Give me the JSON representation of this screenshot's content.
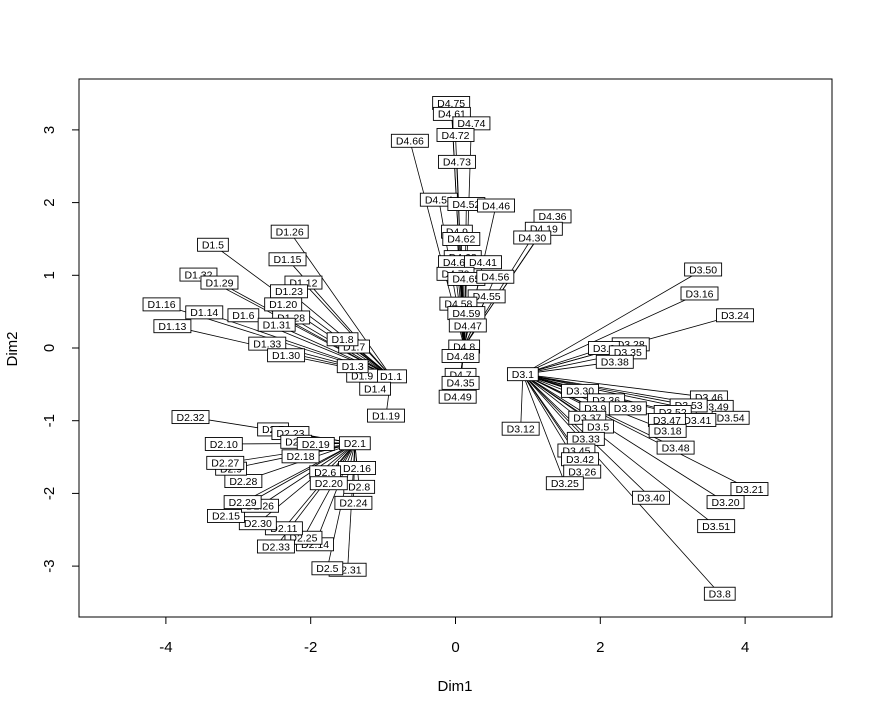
{
  "chart_data": {
    "type": "scatter",
    "title": "",
    "xlabel": "Dim1",
    "ylabel": "Dim2",
    "xlim": [
      -5.2,
      5.2
    ],
    "ylim": [
      -3.7,
      3.7
    ],
    "xticks": [
      -4,
      -2,
      0,
      2,
      4
    ],
    "yticks": [
      -3,
      -2,
      -1,
      0,
      1,
      2,
      3
    ],
    "xtick_labels": [
      "-4",
      "-2",
      "0",
      "2",
      "4"
    ],
    "ytick_labels": [
      "-3",
      "-2",
      "-1",
      "0",
      "1",
      "2",
      "3"
    ],
    "grid": false,
    "style": "labeled points connected by line segments to their group centroid",
    "groups": [
      {
        "name": "D1",
        "centroid": "D1.1",
        "points": [
          {
            "label": "D1.1",
            "x": -0.89,
            "y": -0.39
          },
          {
            "label": "D1.4",
            "x": -1.11,
            "y": -0.56
          },
          {
            "label": "D1.9",
            "x": -1.29,
            "y": -0.38
          },
          {
            "label": "D1.7",
            "x": -1.4,
            "y": 0.02
          },
          {
            "label": "D1.8",
            "x": -1.56,
            "y": 0.12
          },
          {
            "label": "D1.3",
            "x": -1.42,
            "y": -0.25
          },
          {
            "label": "D1.19",
            "x": -0.96,
            "y": -0.93
          },
          {
            "label": "D1.26",
            "x": -2.29,
            "y": 1.6
          },
          {
            "label": "D1.5",
            "x": -3.35,
            "y": 1.42
          },
          {
            "label": "D1.15",
            "x": -2.32,
            "y": 1.22
          },
          {
            "label": "D1.12",
            "x": -2.1,
            "y": 0.9
          },
          {
            "label": "D1.23",
            "x": -2.3,
            "y": 0.78
          },
          {
            "label": "D1.32",
            "x": -3.55,
            "y": 1.01
          },
          {
            "label": "D1.29",
            "x": -3.26,
            "y": 0.9
          },
          {
            "label": "D1.16",
            "x": -4.06,
            "y": 0.6
          },
          {
            "label": "D1.20",
            "x": -2.38,
            "y": 0.6
          },
          {
            "label": "D1.14",
            "x": -3.47,
            "y": 0.49
          },
          {
            "label": "D1.6",
            "x": -2.93,
            "y": 0.45
          },
          {
            "label": "D1.28",
            "x": -2.27,
            "y": 0.42
          },
          {
            "label": "D1.31",
            "x": -2.47,
            "y": 0.32
          },
          {
            "label": "D1.13",
            "x": -3.91,
            "y": 0.3
          },
          {
            "label": "D1.33",
            "x": -2.6,
            "y": 0.06
          },
          {
            "label": "D1.30",
            "x": -2.34,
            "y": -0.1
          }
        ]
      },
      {
        "name": "D2",
        "centroid": "D2.1",
        "points": [
          {
            "label": "D2.1",
            "x": -1.39,
            "y": -1.31
          },
          {
            "label": "D2.16",
            "x": -1.36,
            "y": -1.65
          },
          {
            "label": "D2.8",
            "x": -1.33,
            "y": -1.91
          },
          {
            "label": "D2.24",
            "x": -1.41,
            "y": -2.13
          },
          {
            "label": "D2.6",
            "x": -1.8,
            "y": -1.71
          },
          {
            "label": "D2.20",
            "x": -1.75,
            "y": -1.86
          },
          {
            "label": "D2.31",
            "x": -1.49,
            "y": -3.05
          },
          {
            "label": "D2.5",
            "x": -1.77,
            "y": -3.03
          },
          {
            "label": "D2.14",
            "x": -1.94,
            "y": -2.7
          },
          {
            "label": "D2.25",
            "x": -2.1,
            "y": -2.61
          },
          {
            "label": "D2.11",
            "x": -2.37,
            "y": -2.48
          },
          {
            "label": "D2.33",
            "x": -2.48,
            "y": -2.73
          },
          {
            "label": "D2.30",
            "x": -2.73,
            "y": -2.41
          },
          {
            "label": "D2.15",
            "x": -3.17,
            "y": -2.31
          },
          {
            "label": "D2.26",
            "x": -2.7,
            "y": -2.17
          },
          {
            "label": "D2.29",
            "x": -2.94,
            "y": -2.12
          },
          {
            "label": "D2.28",
            "x": -2.93,
            "y": -1.83
          },
          {
            "label": "D2.9",
            "x": -3.1,
            "y": -1.66
          },
          {
            "label": "D2.27",
            "x": -3.18,
            "y": -1.58
          },
          {
            "label": "D2.10",
            "x": -3.2,
            "y": -1.32
          },
          {
            "label": "D2.32",
            "x": -3.66,
            "y": -0.95
          },
          {
            "label": "D2.7",
            "x": -2.52,
            "y": -1.12
          },
          {
            "label": "D2.23",
            "x": -2.28,
            "y": -1.17
          },
          {
            "label": "D2.3",
            "x": -2.2,
            "y": -1.29
          },
          {
            "label": "D2.19",
            "x": -1.93,
            "y": -1.32
          },
          {
            "label": "D2.18",
            "x": -2.14,
            "y": -1.49
          }
        ]
      },
      {
        "name": "D3",
        "centroid": "D3.1",
        "points": [
          {
            "label": "D3.1",
            "x": 0.93,
            "y": -0.36
          },
          {
            "label": "D3.12",
            "x": 0.9,
            "y": -1.11
          },
          {
            "label": "D3.50",
            "x": 3.42,
            "y": 1.08
          },
          {
            "label": "D3.16",
            "x": 3.37,
            "y": 0.75
          },
          {
            "label": "D3.24",
            "x": 3.86,
            "y": 0.45
          },
          {
            "label": "D3.28",
            "x": 2.42,
            "y": 0.05
          },
          {
            "label": "D3.6",
            "x": 2.05,
            "y": 0.0
          },
          {
            "label": "D3.35",
            "x": 2.38,
            "y": -0.06
          },
          {
            "label": "D3.38",
            "x": 2.2,
            "y": -0.19
          },
          {
            "label": "D3.30",
            "x": 1.72,
            "y": -0.59
          },
          {
            "label": "D3.36",
            "x": 2.08,
            "y": -0.72
          },
          {
            "label": "D3.9",
            "x": 1.93,
            "y": -0.83
          },
          {
            "label": "D3.39",
            "x": 2.38,
            "y": -0.83
          },
          {
            "label": "D3.37",
            "x": 1.82,
            "y": -0.96
          },
          {
            "label": "D3.5",
            "x": 1.97,
            "y": -1.08
          },
          {
            "label": "D3.33",
            "x": 1.8,
            "y": -1.25
          },
          {
            "label": "D3.45",
            "x": 1.67,
            "y": -1.41
          },
          {
            "label": "D3.42",
            "x": 1.72,
            "y": -1.53
          },
          {
            "label": "D3.26",
            "x": 1.75,
            "y": -1.7
          },
          {
            "label": "D3.25",
            "x": 1.51,
            "y": -1.86
          },
          {
            "label": "D3.46",
            "x": 3.5,
            "y": -0.68
          },
          {
            "label": "D3.49",
            "x": 3.58,
            "y": -0.81
          },
          {
            "label": "D3.53",
            "x": 3.22,
            "y": -0.79
          },
          {
            "label": "D3.52",
            "x": 3.0,
            "y": -0.88
          },
          {
            "label": "D3.54",
            "x": 3.8,
            "y": -0.96
          },
          {
            "label": "D3.41",
            "x": 3.34,
            "y": -0.99
          },
          {
            "label": "D3.47",
            "x": 2.92,
            "y": -0.99
          },
          {
            "label": "D3.18",
            "x": 2.93,
            "y": -1.14
          },
          {
            "label": "D3.48",
            "x": 3.04,
            "y": -1.37
          },
          {
            "label": "D3.40",
            "x": 2.7,
            "y": -2.06
          },
          {
            "label": "D3.21",
            "x": 4.06,
            "y": -1.94
          },
          {
            "label": "D3.20",
            "x": 3.73,
            "y": -2.12
          },
          {
            "label": "D3.51",
            "x": 3.6,
            "y": -2.45
          },
          {
            "label": "D3.8",
            "x": 3.65,
            "y": -3.38
          }
        ]
      },
      {
        "name": "D4",
        "centroid": "D4.8",
        "points": [
          {
            "label": "D4.8",
            "x": 0.12,
            "y": 0.02
          },
          {
            "label": "D4.75",
            "x": -0.06,
            "y": 3.37
          },
          {
            "label": "D4.61",
            "x": -0.05,
            "y": 3.22
          },
          {
            "label": "D4.74",
            "x": 0.22,
            "y": 3.09
          },
          {
            "label": "D4.72",
            "x": 0.0,
            "y": 2.93
          },
          {
            "label": "D4.66",
            "x": -0.63,
            "y": 2.85
          },
          {
            "label": "D4.73",
            "x": 0.02,
            "y": 2.56
          },
          {
            "label": "D4.54",
            "x": -0.23,
            "y": 2.04
          },
          {
            "label": "D4.52",
            "x": 0.15,
            "y": 1.98
          },
          {
            "label": "D4.46",
            "x": 0.56,
            "y": 1.96
          },
          {
            "label": "D4.36",
            "x": 1.34,
            "y": 1.81
          },
          {
            "label": "D4.19",
            "x": 1.22,
            "y": 1.64
          },
          {
            "label": "D4.9",
            "x": 0.02,
            "y": 1.6
          },
          {
            "label": "D4.30",
            "x": 1.06,
            "y": 1.52
          },
          {
            "label": "D4.62",
            "x": 0.08,
            "y": 1.5
          },
          {
            "label": "D4.68",
            "x": 0.1,
            "y": 1.25
          },
          {
            "label": "D4.69",
            "x": 0.02,
            "y": 1.18
          },
          {
            "label": "D4.41",
            "x": 0.38,
            "y": 1.18
          },
          {
            "label": "D4.70",
            "x": 0.0,
            "y": 1.02
          },
          {
            "label": "D4.65",
            "x": 0.15,
            "y": 0.95
          },
          {
            "label": "D4.56",
            "x": 0.55,
            "y": 0.98
          },
          {
            "label": "D4.55",
            "x": 0.43,
            "y": 0.71
          },
          {
            "label": "D4.58",
            "x": 0.04,
            "y": 0.61
          },
          {
            "label": "D4.59",
            "x": 0.15,
            "y": 0.48
          },
          {
            "label": "D4.47",
            "x": 0.17,
            "y": 0.31
          },
          {
            "label": "D4.48",
            "x": 0.07,
            "y": -0.11
          },
          {
            "label": "D4.7",
            "x": 0.07,
            "y": -0.37
          },
          {
            "label": "D4.35",
            "x": 0.07,
            "y": -0.48
          },
          {
            "label": "D4.49",
            "x": 0.03,
            "y": -0.67
          }
        ]
      }
    ]
  }
}
